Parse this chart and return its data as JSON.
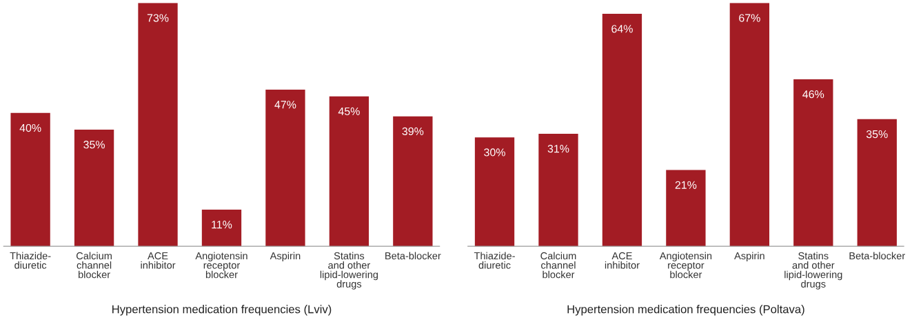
{
  "chart_data": [
    {
      "type": "bar",
      "xlabel": "Hypertension medication frequencies (Lviv)",
      "categories": [
        "Thiazide-\ndiuretic",
        "Calcium\nchannel\nblocker",
        "ACE\ninhibitor",
        "Angiotensin\nreceptor\nblocker",
        "Aspirin",
        "Statins\nand other\nlipid-lowering\ndrugs",
        "Beta-blocker"
      ],
      "values": [
        40,
        35,
        73,
        11,
        47,
        45,
        39
      ],
      "color": "#a31c24",
      "value_labels": [
        "40%",
        "35%",
        "73%",
        "11%",
        "47%",
        "45%",
        "39%"
      ],
      "grid": false,
      "legend": false
    },
    {
      "type": "bar",
      "xlabel": "Hypertension medication frequencies (Poltava)",
      "categories": [
        "Thiazide-\ndiuretic",
        "Calcium\nchannel\nblocker",
        "ACE\ninhibitor",
        "Angiotensin\nreceptor\nblocker",
        "Aspirin",
        "Statins\nand other\nlipid-lowering\ndrugs",
        "Beta-blocker"
      ],
      "values": [
        30,
        31,
        64,
        21,
        67,
        46,
        35
      ],
      "color": "#a31c24",
      "value_labels": [
        "30%",
        "31%",
        "64%",
        "21%",
        "67%",
        "46%",
        "35%"
      ],
      "grid": false,
      "legend": false
    }
  ]
}
